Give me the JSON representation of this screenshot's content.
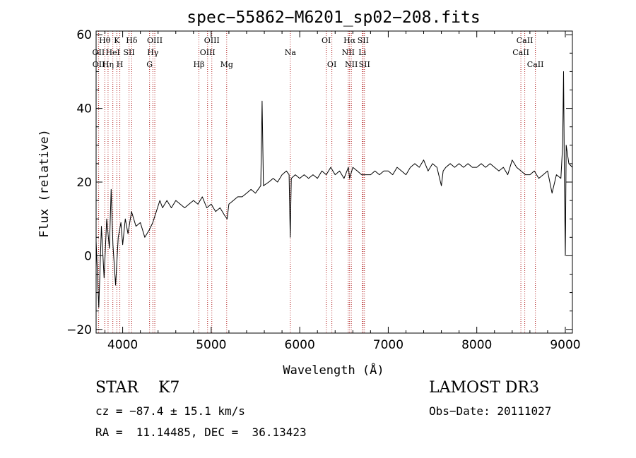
{
  "chart_data": {
    "type": "line",
    "title": "spec−55862−M6201_sp02−208.fits",
    "xlabel": "Wavelength (Å)",
    "ylabel": "Flux (relative)",
    "xlim": [
      3700,
      9080
    ],
    "ylim": [
      -21,
      61
    ],
    "x_ticks": [
      4000,
      5000,
      6000,
      7000,
      8000,
      9000
    ],
    "y_ticks": [
      -20,
      0,
      20,
      40,
      60
    ],
    "y_tick_labels": [
      "−20",
      "0",
      "20",
      "40",
      "60"
    ],
    "series": [
      {
        "name": "flux",
        "color": "#000000",
        "points": [
          [
            3700,
            4
          ],
          [
            3730,
            -14
          ],
          [
            3760,
            8
          ],
          [
            3790,
            -6
          ],
          [
            3820,
            10
          ],
          [
            3850,
            2
          ],
          [
            3870,
            18
          ],
          [
            3890,
            3
          ],
          [
            3920,
            -8
          ],
          [
            3950,
            5
          ],
          [
            3980,
            9
          ],
          [
            4000,
            3
          ],
          [
            4030,
            10
          ],
          [
            4060,
            6
          ],
          [
            4100,
            12
          ],
          [
            4150,
            8
          ],
          [
            4200,
            9
          ],
          [
            4250,
            5
          ],
          [
            4300,
            7
          ],
          [
            4340,
            9
          ],
          [
            4380,
            12
          ],
          [
            4420,
            15
          ],
          [
            4450,
            13
          ],
          [
            4500,
            15
          ],
          [
            4550,
            13
          ],
          [
            4600,
            15
          ],
          [
            4650,
            14
          ],
          [
            4700,
            13
          ],
          [
            4750,
            14
          ],
          [
            4800,
            15
          ],
          [
            4850,
            14
          ],
          [
            4900,
            16
          ],
          [
            4950,
            13
          ],
          [
            5000,
            14
          ],
          [
            5050,
            12
          ],
          [
            5100,
            13
          ],
          [
            5150,
            11
          ],
          [
            5180,
            10
          ],
          [
            5200,
            14
          ],
          [
            5250,
            15
          ],
          [
            5300,
            16
          ],
          [
            5350,
            16
          ],
          [
            5400,
            17
          ],
          [
            5450,
            18
          ],
          [
            5500,
            17
          ],
          [
            5560,
            19
          ],
          [
            5575,
            42
          ],
          [
            5590,
            19
          ],
          [
            5650,
            20
          ],
          [
            5700,
            21
          ],
          [
            5750,
            20
          ],
          [
            5800,
            22
          ],
          [
            5850,
            23
          ],
          [
            5880,
            22
          ],
          [
            5893,
            5
          ],
          [
            5905,
            21
          ],
          [
            5950,
            22
          ],
          [
            6000,
            21
          ],
          [
            6050,
            22
          ],
          [
            6100,
            21
          ],
          [
            6150,
            22
          ],
          [
            6200,
            21
          ],
          [
            6250,
            23
          ],
          [
            6300,
            22
          ],
          [
            6350,
            24
          ],
          [
            6400,
            22
          ],
          [
            6450,
            23
          ],
          [
            6500,
            21
          ],
          [
            6550,
            24
          ],
          [
            6563,
            21
          ],
          [
            6600,
            24
          ],
          [
            6650,
            23
          ],
          [
            6700,
            22
          ],
          [
            6750,
            22
          ],
          [
            6800,
            22
          ],
          [
            6850,
            23
          ],
          [
            6900,
            22
          ],
          [
            6950,
            23
          ],
          [
            7000,
            23
          ],
          [
            7050,
            22
          ],
          [
            7100,
            24
          ],
          [
            7150,
            23
          ],
          [
            7200,
            22
          ],
          [
            7250,
            24
          ],
          [
            7300,
            25
          ],
          [
            7350,
            24
          ],
          [
            7400,
            26
          ],
          [
            7450,
            23
          ],
          [
            7500,
            25
          ],
          [
            7550,
            24
          ],
          [
            7600,
            19
          ],
          [
            7620,
            23
          ],
          [
            7650,
            24
          ],
          [
            7700,
            25
          ],
          [
            7750,
            24
          ],
          [
            7800,
            25
          ],
          [
            7850,
            24
          ],
          [
            7900,
            25
          ],
          [
            7950,
            24
          ],
          [
            8000,
            24
          ],
          [
            8050,
            25
          ],
          [
            8100,
            24
          ],
          [
            8150,
            25
          ],
          [
            8200,
            24
          ],
          [
            8250,
            23
          ],
          [
            8300,
            24
          ],
          [
            8350,
            22
          ],
          [
            8400,
            26
          ],
          [
            8450,
            24
          ],
          [
            8500,
            23
          ],
          [
            8550,
            22
          ],
          [
            8600,
            22
          ],
          [
            8650,
            23
          ],
          [
            8700,
            21
          ],
          [
            8750,
            22
          ],
          [
            8800,
            23
          ],
          [
            8850,
            17
          ],
          [
            8900,
            22
          ],
          [
            8950,
            21
          ],
          [
            8970,
            30
          ],
          [
            8980,
            50
          ],
          [
            8990,
            20
          ],
          [
            9000,
            0
          ],
          [
            9010,
            30
          ],
          [
            9040,
            25
          ],
          [
            9080,
            24
          ]
        ]
      }
    ],
    "reference_lines": [
      {
        "label": "Hθ",
        "wavelength": 3798,
        "label_row": 0
      },
      {
        "label": "OII",
        "wavelength": 3727,
        "label_row": 1
      },
      {
        "label": "OII",
        "wavelength": 3729,
        "label_row": 2
      },
      {
        "label": "Hη",
        "wavelength": 3835,
        "label_row": 2
      },
      {
        "label": "HeI",
        "wavelength": 3889,
        "label_row": 1
      },
      {
        "label": "K",
        "wavelength": 3934,
        "label_row": 0
      },
      {
        "label": "H",
        "wavelength": 3968,
        "label_row": 2
      },
      {
        "label": "SII",
        "wavelength": 4072,
        "label_row": 1
      },
      {
        "label": "Hδ",
        "wavelength": 4102,
        "label_row": 0
      },
      {
        "label": "G",
        "wavelength": 4304,
        "label_row": 2
      },
      {
        "label": "Hγ",
        "wavelength": 4341,
        "label_row": 1
      },
      {
        "label": "OIII",
        "wavelength": 4363,
        "label_row": 0
      },
      {
        "label": "Hβ",
        "wavelength": 4861,
        "label_row": 2
      },
      {
        "label": "OIII",
        "wavelength": 4959,
        "label_row": 1
      },
      {
        "label": "OIII",
        "wavelength": 5007,
        "label_row": 0
      },
      {
        "label": "Mg",
        "wavelength": 5175,
        "label_row": 2
      },
      {
        "label": "Na",
        "wavelength": 5894,
        "label_row": 1
      },
      {
        "label": "OI",
        "wavelength": 6300,
        "label_row": 0
      },
      {
        "label": "OI",
        "wavelength": 6363,
        "label_row": 2
      },
      {
        "label": "NII",
        "wavelength": 6548,
        "label_row": 1
      },
      {
        "label": "Hα",
        "wavelength": 6563,
        "label_row": 0
      },
      {
        "label": "NII",
        "wavelength": 6583,
        "label_row": 2
      },
      {
        "label": "SII",
        "wavelength": 6716,
        "label_row": 0
      },
      {
        "label": "Li",
        "wavelength": 6707,
        "label_row": 1
      },
      {
        "label": "SII",
        "wavelength": 6731,
        "label_row": 2
      },
      {
        "label": "CaII",
        "wavelength": 8498,
        "label_row": 1
      },
      {
        "label": "CaII",
        "wavelength": 8542,
        "label_row": 0
      },
      {
        "label": "CaII",
        "wavelength": 8662,
        "label_row": 2
      }
    ]
  },
  "info": {
    "class_line": "STAR    K7",
    "survey": "LAMOST DR3",
    "redshift_line": "cz = −87.4 ± 15.1 km/s",
    "obs_date_line": "Obs−Date: 20111027",
    "radec_line": "RA =  11.14485, DEC =  36.13423"
  },
  "colors": {
    "axis": "#000000",
    "spectrum": "#000000",
    "reference_line": "#b22222"
  }
}
